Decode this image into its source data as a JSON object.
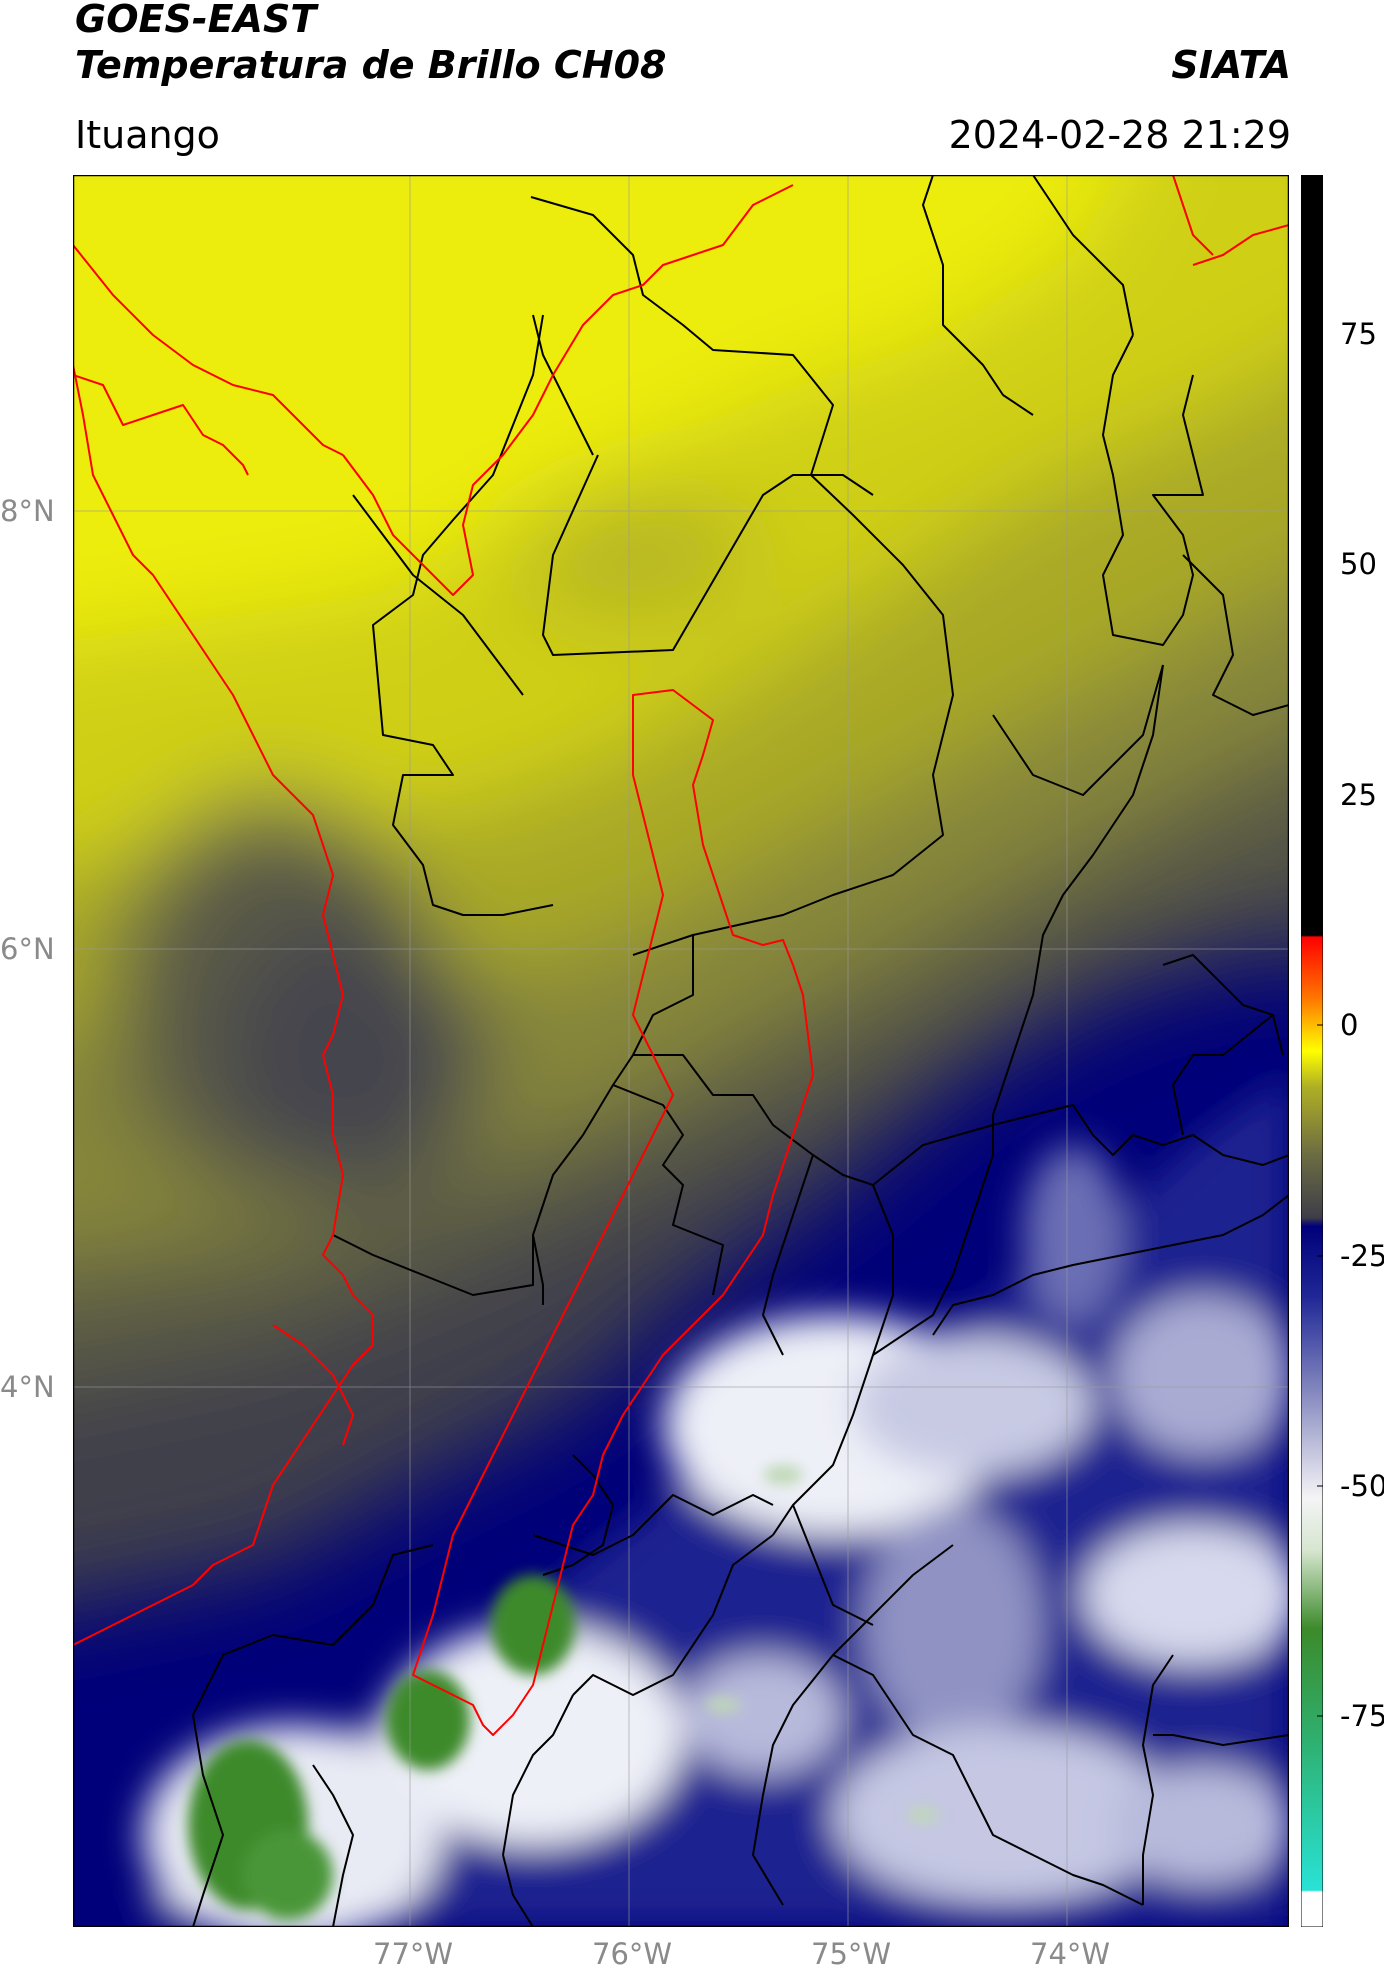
{
  "header": {
    "title_line1": "GOES-EAST",
    "title_line2": "Temperatura de Brillo CH08",
    "brand": "SIATA",
    "location": "Ituango",
    "timestamp": "2024-02-28 21:29"
  },
  "map": {
    "lat_labels": [
      "8°N",
      "6°N",
      "4°N"
    ],
    "lon_labels": [
      "77°W",
      "76°W",
      "75°W",
      "74°W"
    ],
    "watershed_color": "#ff0000",
    "coastline_color": "#ff0000",
    "boundary_color": "#000000",
    "gridline_color": "#9a9a9a"
  },
  "colorbar": {
    "ticks": [
      "75",
      "50",
      "25",
      "0",
      "-25",
      "-50",
      "-75"
    ],
    "colors": [
      "#ffffff",
      "#29e2d6",
      "#2fae6c",
      "#3c8a2a",
      "#d6e6cf",
      "#f4f4f6",
      "#8f92c3",
      "#1f2796",
      "#00007a",
      "#3e3e48",
      "#6b6b43",
      "#b0b024",
      "#ffff00",
      "#ff7700",
      "#ff0000",
      "#000000"
    ]
  }
}
